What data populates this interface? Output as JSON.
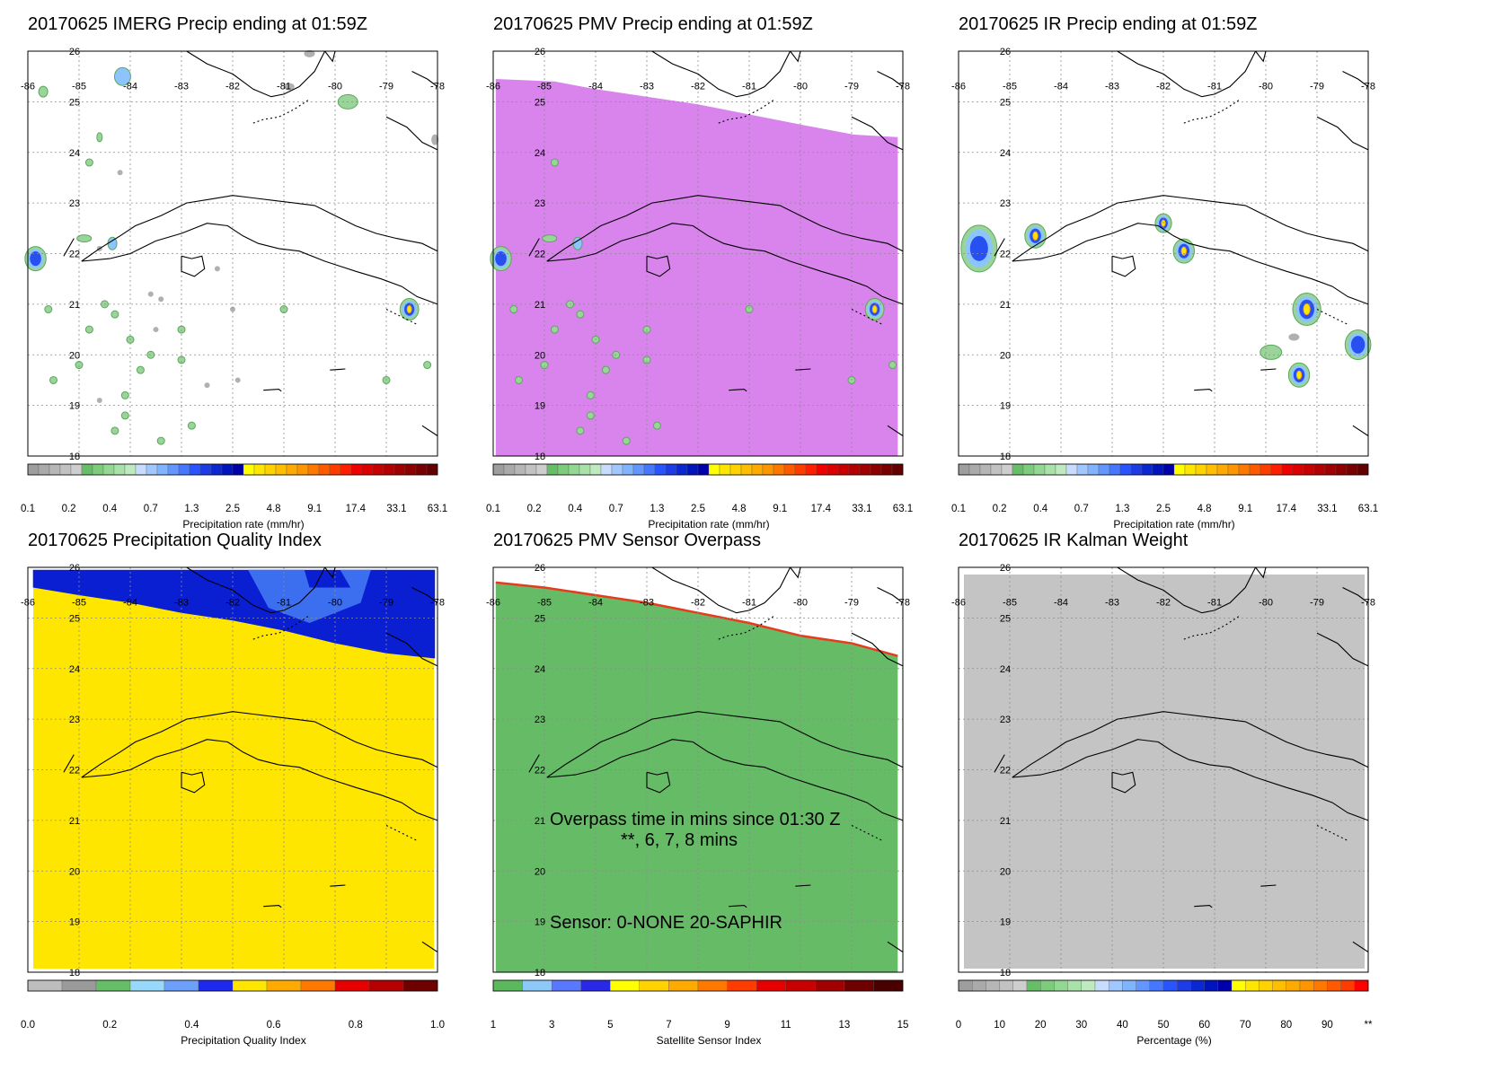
{
  "map": {
    "lon_labels": [
      "-86",
      "-85",
      "-84",
      "-83",
      "-82",
      "-81",
      "-80",
      "-79",
      "-78"
    ],
    "lat_labels": [
      "26",
      "25",
      "24",
      "23",
      "22",
      "21",
      "20",
      "19",
      "18"
    ]
  },
  "panels": [
    {
      "title": "20170625 IMERG Precip ending at 01:59Z",
      "colorbar_label": "Precipitation rate (mm/hr)",
      "colorbar_ticks": [
        "0.1",
        "0.2",
        "0.4",
        "0.7",
        "1.3",
        "2.5",
        "4.8",
        "9.1",
        "17.4",
        "33.1",
        "63.1"
      ]
    },
    {
      "title": "20170625 PMV Precip ending at 01:59Z",
      "colorbar_label": "Precipitation rate (mm/hr)",
      "colorbar_ticks": [
        "0.1",
        "0.2",
        "0.4",
        "0.7",
        "1.3",
        "2.5",
        "4.8",
        "9.1",
        "17.4",
        "33.1",
        "63.1"
      ]
    },
    {
      "title": "20170625 IR Precip ending at 01:59Z",
      "colorbar_label": "Precipitation rate (mm/hr)",
      "colorbar_ticks": [
        "0.1",
        "0.2",
        "0.4",
        "0.7",
        "1.3",
        "2.5",
        "4.8",
        "9.1",
        "17.4",
        "33.1",
        "63.1"
      ]
    },
    {
      "title": "20170625 Precipitation Quality Index",
      "colorbar_label": "Precipitation Quality Index",
      "colorbar_ticks": [
        "0.0",
        "0.2",
        "0.4",
        "0.6",
        "0.8",
        "1.0"
      ]
    },
    {
      "title": "20170625 PMV Sensor Overpass",
      "colorbar_label": "Satellite Sensor Index",
      "colorbar_ticks": [
        "1",
        "3",
        "5",
        "7",
        "9",
        "11",
        "13",
        "15"
      ],
      "annotation_line1": "Overpass time in mins since 01:30 Z",
      "annotation_line2": "**, 6, 7, 8 mins",
      "annotation_line3": "Sensor:   0-NONE 20-SAPHIR"
    },
    {
      "title": "20170625 IR Kalman Weight",
      "colorbar_label": "Percentage (%)",
      "colorbar_ticks": [
        "0",
        "10",
        "20",
        "30",
        "40",
        "50",
        "60",
        "70",
        "80",
        "90",
        "**"
      ]
    }
  ],
  "colors": {
    "rate_scale": [
      "#9e9e9e",
      "#aaaaaa",
      "#b6b6b6",
      "#c2c2c2",
      "#cecece",
      "#66bf66",
      "#7ccc7c",
      "#92d792",
      "#a8e2a8",
      "#bfe9bf",
      "#c8dcff",
      "#a0c8ff",
      "#80b4ff",
      "#6496ff",
      "#4678ff",
      "#2855ff",
      "#1e3ce6",
      "#0a28d2",
      "#0014be",
      "#0000aa",
      "#ffff00",
      "#ffe600",
      "#ffd200",
      "#ffbe00",
      "#ffaa00",
      "#ff9600",
      "#ff7800",
      "#ff5a00",
      "#ff3c00",
      "#ff1e00",
      "#f00000",
      "#dc0000",
      "#c80000",
      "#b40000",
      "#a00000",
      "#8c0000",
      "#780000",
      "#640000"
    ],
    "quality_scale": [
      "#bdbdbd",
      "#9a9a9a",
      "#66bf66",
      "#98d8fa",
      "#6ca0fa",
      "#1e28f0",
      "#ffe600",
      "#ffaa00",
      "#ff7800",
      "#e60000",
      "#b40000",
      "#6e0000"
    ],
    "sensor_scale": [
      "#5cb85c",
      "#8cc8f8",
      "#5a78ff",
      "#2828e6",
      "#ffff00",
      "#ffd200",
      "#ffaa00",
      "#ff7800",
      "#ff3c00",
      "#e60000",
      "#c80000",
      "#a00000",
      "#6e0000",
      "#4a0000"
    ],
    "weight_scale": [
      "#9e9e9e",
      "#aaaaaa",
      "#b6b6b6",
      "#c2c2c2",
      "#cecece",
      "#66bf66",
      "#7ccc7c",
      "#92d792",
      "#a8e2a8",
      "#bfe9bf",
      "#c8dcff",
      "#a0c8ff",
      "#80b4ff",
      "#6496ff",
      "#4678ff",
      "#2855ff",
      "#1e3ce6",
      "#0a28d2",
      "#0014be",
      "#0000aa",
      "#ffff00",
      "#ffe600",
      "#ffd200",
      "#ffbe00",
      "#ffaa00",
      "#ff9600",
      "#ff7800",
      "#ff5a00",
      "#ff3c00",
      "#ff0000"
    ],
    "pmv_fill": "#d884ec",
    "quality_main": "#ffe600",
    "quality_top": "#0a1ed2",
    "quality_patch": "#3c6ef0",
    "sensor_fill": "#66bb66",
    "weight_fill": "#c4c4c4"
  }
}
